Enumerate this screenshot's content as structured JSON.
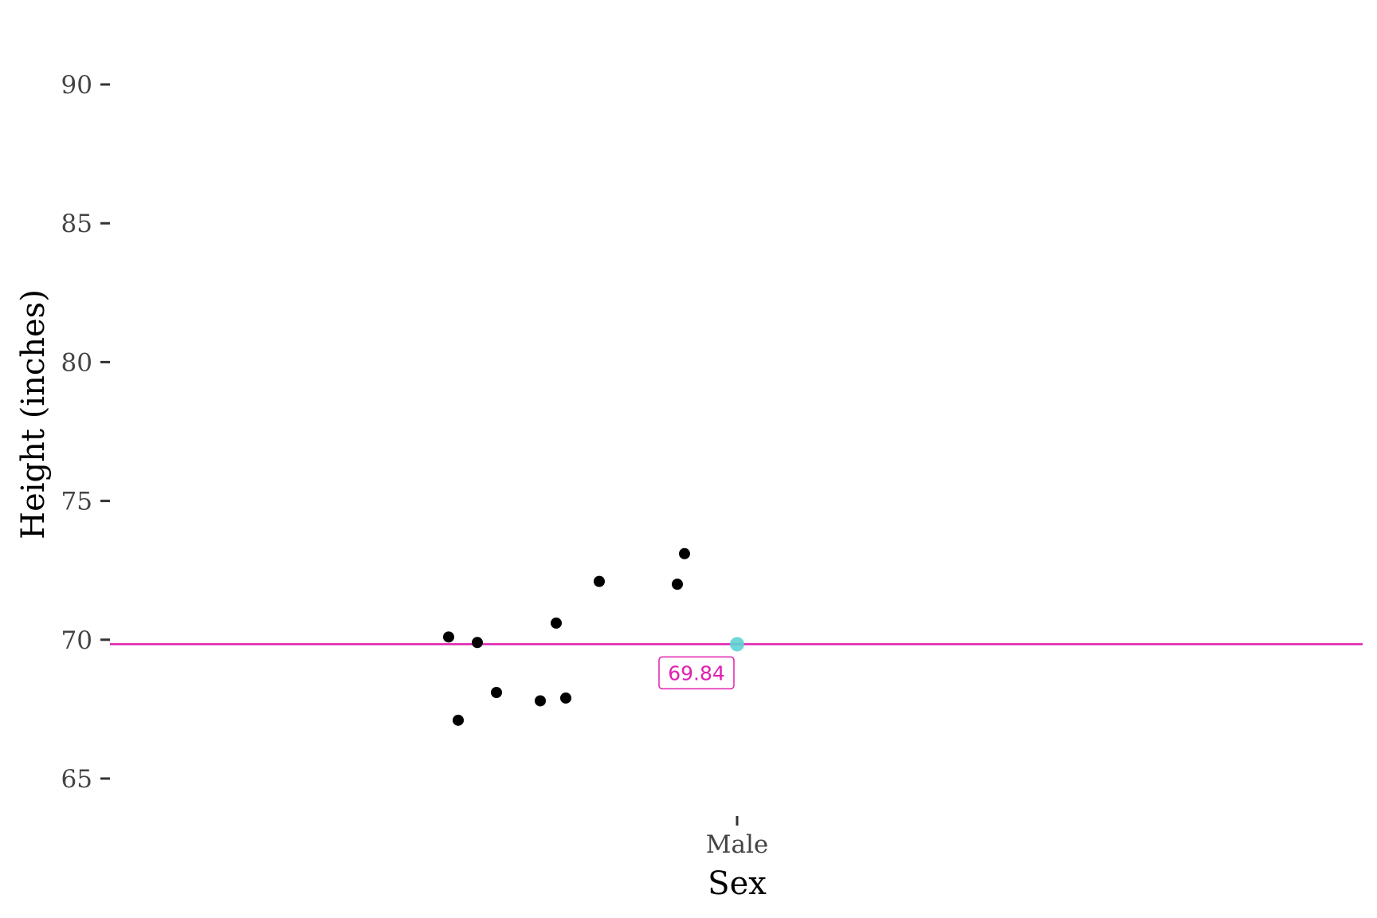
{
  "chart_data": {
    "type": "scatter",
    "title": "",
    "xlabel": "Sex",
    "ylabel": "Height (inches)",
    "categories": [
      "Male"
    ],
    "ylim": [
      63.5,
      92.5
    ],
    "yticks": [
      65,
      70,
      75,
      80,
      85,
      90
    ],
    "ytick_labels": [
      "65",
      "70",
      "75",
      "80",
      "85",
      "90"
    ],
    "grid": false,
    "legend": "none",
    "points": [
      {
        "x": "Male",
        "y": 70.1
      },
      {
        "x": "Male",
        "y": 67.1
      },
      {
        "x": "Male",
        "y": 69.9
      },
      {
        "x": "Male",
        "y": 68.1
      },
      {
        "x": "Male",
        "y": 67.8
      },
      {
        "x": "Male",
        "y": 70.6
      },
      {
        "x": "Male",
        "y": 67.9
      },
      {
        "x": "Male",
        "y": 72.1
      },
      {
        "x": "Male",
        "y": 72.0
      },
      {
        "x": "Male",
        "y": 73.1
      }
    ],
    "mean": {
      "x": "Male",
      "y": 69.84,
      "label": "69.84"
    },
    "colors": {
      "points": "#000000",
      "mean_line": "#e020b0",
      "mean_point": "#5fd3d3",
      "axis_ticks": "#333333"
    }
  }
}
